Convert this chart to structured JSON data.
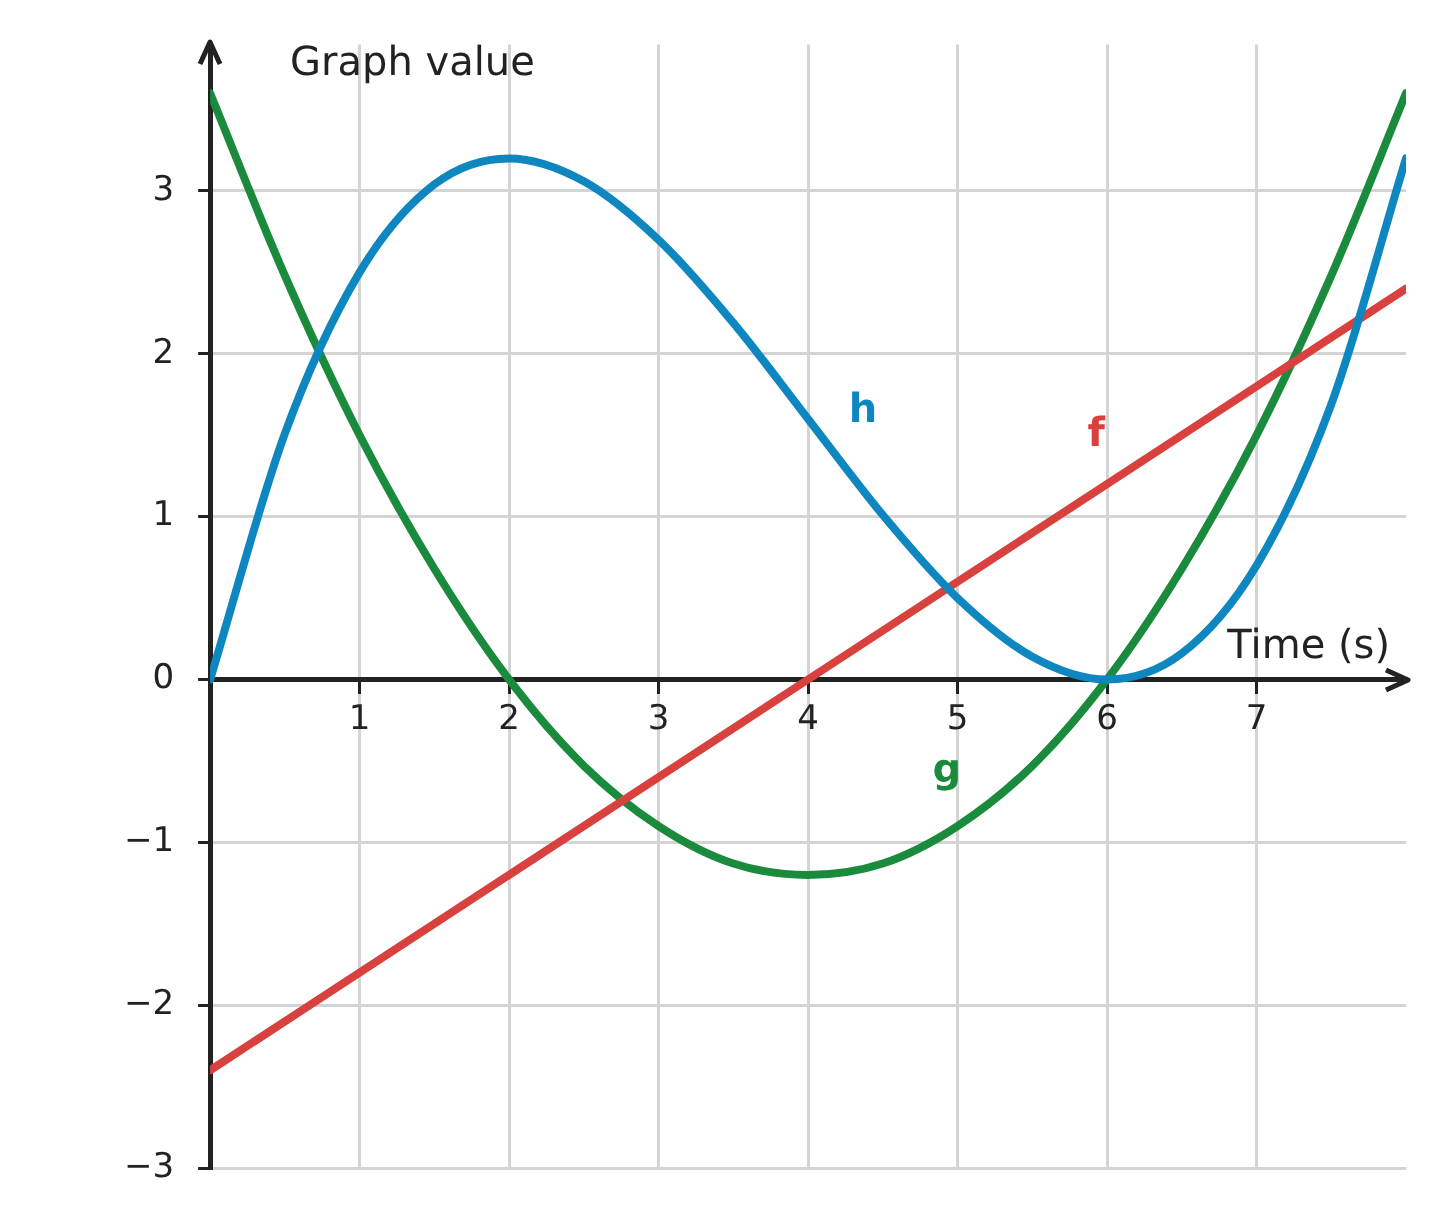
{
  "chart_data": {
    "type": "line",
    "xlabel": "Time (s)",
    "ylabel": "Graph value",
    "xlim": [
      0,
      8
    ],
    "ylim": [
      -3,
      3.9
    ],
    "xticks": [
      1,
      2,
      3,
      4,
      5,
      6,
      7
    ],
    "yticks": [
      -3,
      -2,
      -1,
      0,
      1,
      2,
      3
    ],
    "grid": true,
    "legend": false,
    "marker": "none",
    "line_style": "solid",
    "series": [
      {
        "name": "h",
        "color": "#0e87c0",
        "x": [
          0,
          0.5,
          1,
          1.5,
          2,
          2.5,
          3,
          3.5,
          4,
          4.5,
          5,
          5.5,
          6,
          6.5,
          7,
          7.5,
          8
        ],
        "values": [
          0,
          1.51,
          2.5,
          3.04,
          3.2,
          3.06,
          2.7,
          2.19,
          1.6,
          1.01,
          0.5,
          0.14,
          0,
          0.16,
          0.7,
          1.69,
          3.2
        ]
      },
      {
        "name": "f",
        "color": "#d9413e",
        "x": [
          0,
          8
        ],
        "values": [
          -2.4,
          2.4
        ]
      },
      {
        "name": "g",
        "color": "#1a8a3c",
        "x": [
          0,
          0.5,
          1,
          1.5,
          2,
          2.5,
          3,
          3.5,
          4,
          4.5,
          5,
          5.5,
          6,
          6.5,
          7,
          7.5,
          8
        ],
        "values": [
          3.6,
          2.48,
          1.5,
          0.68,
          0,
          -0.53,
          -0.9,
          -1.13,
          -1.2,
          -1.13,
          -0.9,
          -0.53,
          0,
          0.68,
          1.5,
          2.48,
          3.6
        ]
      }
    ]
  }
}
